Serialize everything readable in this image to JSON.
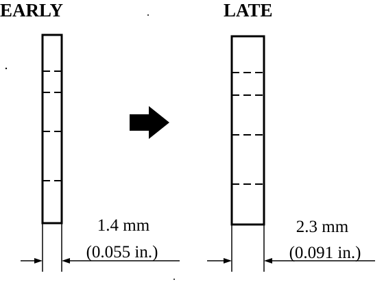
{
  "early": {
    "title": "EARLY",
    "measurement_mm": "1.4 mm",
    "measurement_in": "(0.055 in.)"
  },
  "late": {
    "title": "LATE",
    "measurement_mm": "2.3 mm",
    "measurement_in": "(0.091 in.)"
  },
  "icons": {
    "transition": "right-arrow-icon",
    "dimension": "dimension-arrow-icon"
  },
  "colors": {
    "ink": "#000000",
    "background": "#ffffff"
  }
}
